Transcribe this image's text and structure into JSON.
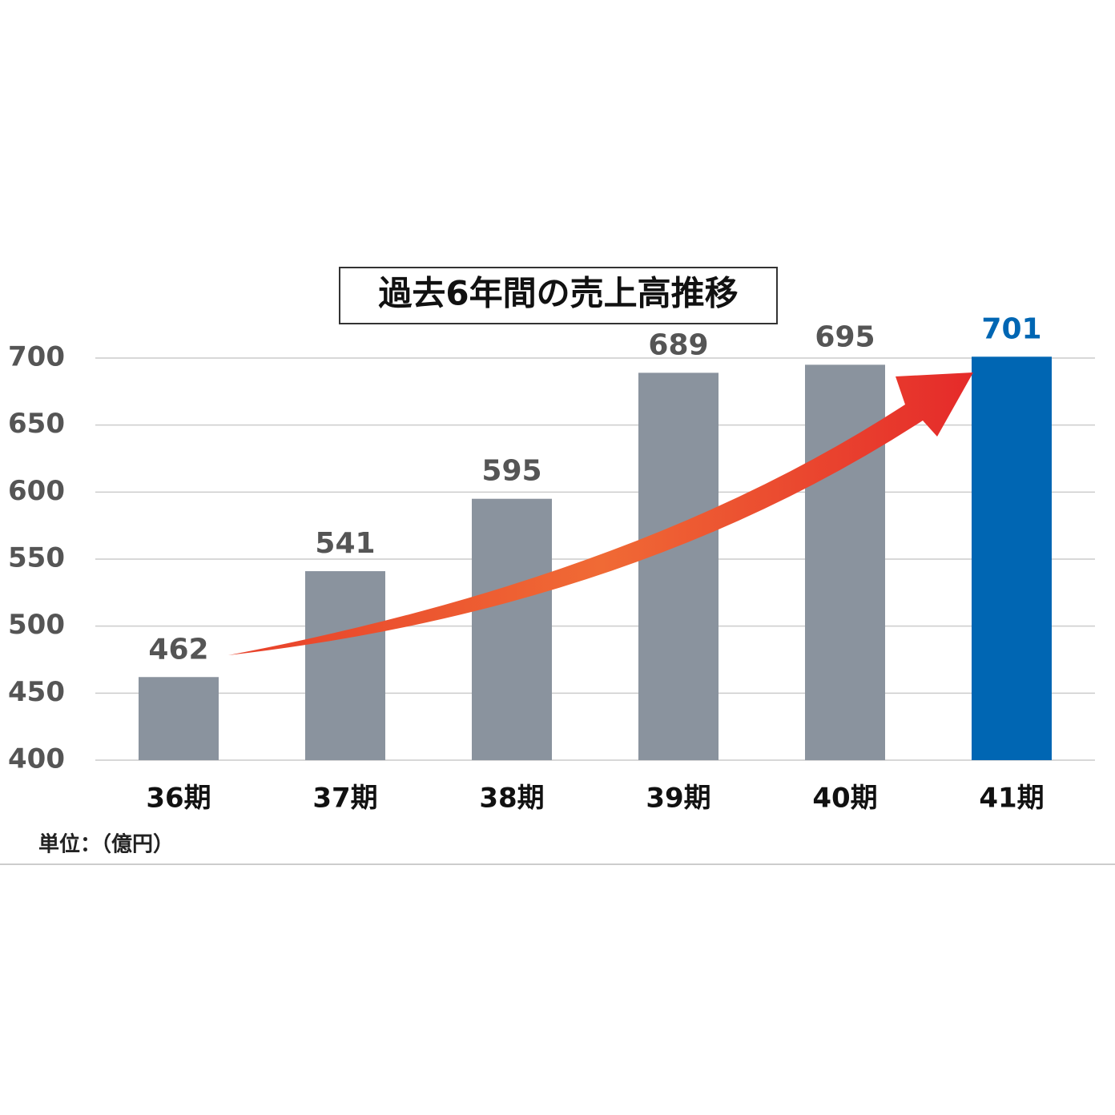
{
  "chart_data": {
    "type": "bar",
    "title": "過去6年間の売上高推移",
    "categories": [
      "36期",
      "37期",
      "38期",
      "39期",
      "40期",
      "41期"
    ],
    "values": [
      462,
      541,
      595,
      689,
      695,
      701
    ],
    "color": "#8a939e",
    "colors": [
      "#8a939e",
      "#8a939e",
      "#8a939e",
      "#8a939e",
      "#8a939e",
      "#0066b3"
    ],
    "ylim": [
      400,
      700
    ],
    "yticks": [
      400,
      450,
      500,
      550,
      600,
      650,
      700
    ],
    "grid": true,
    "unit_note": "単位：（億円）"
  }
}
